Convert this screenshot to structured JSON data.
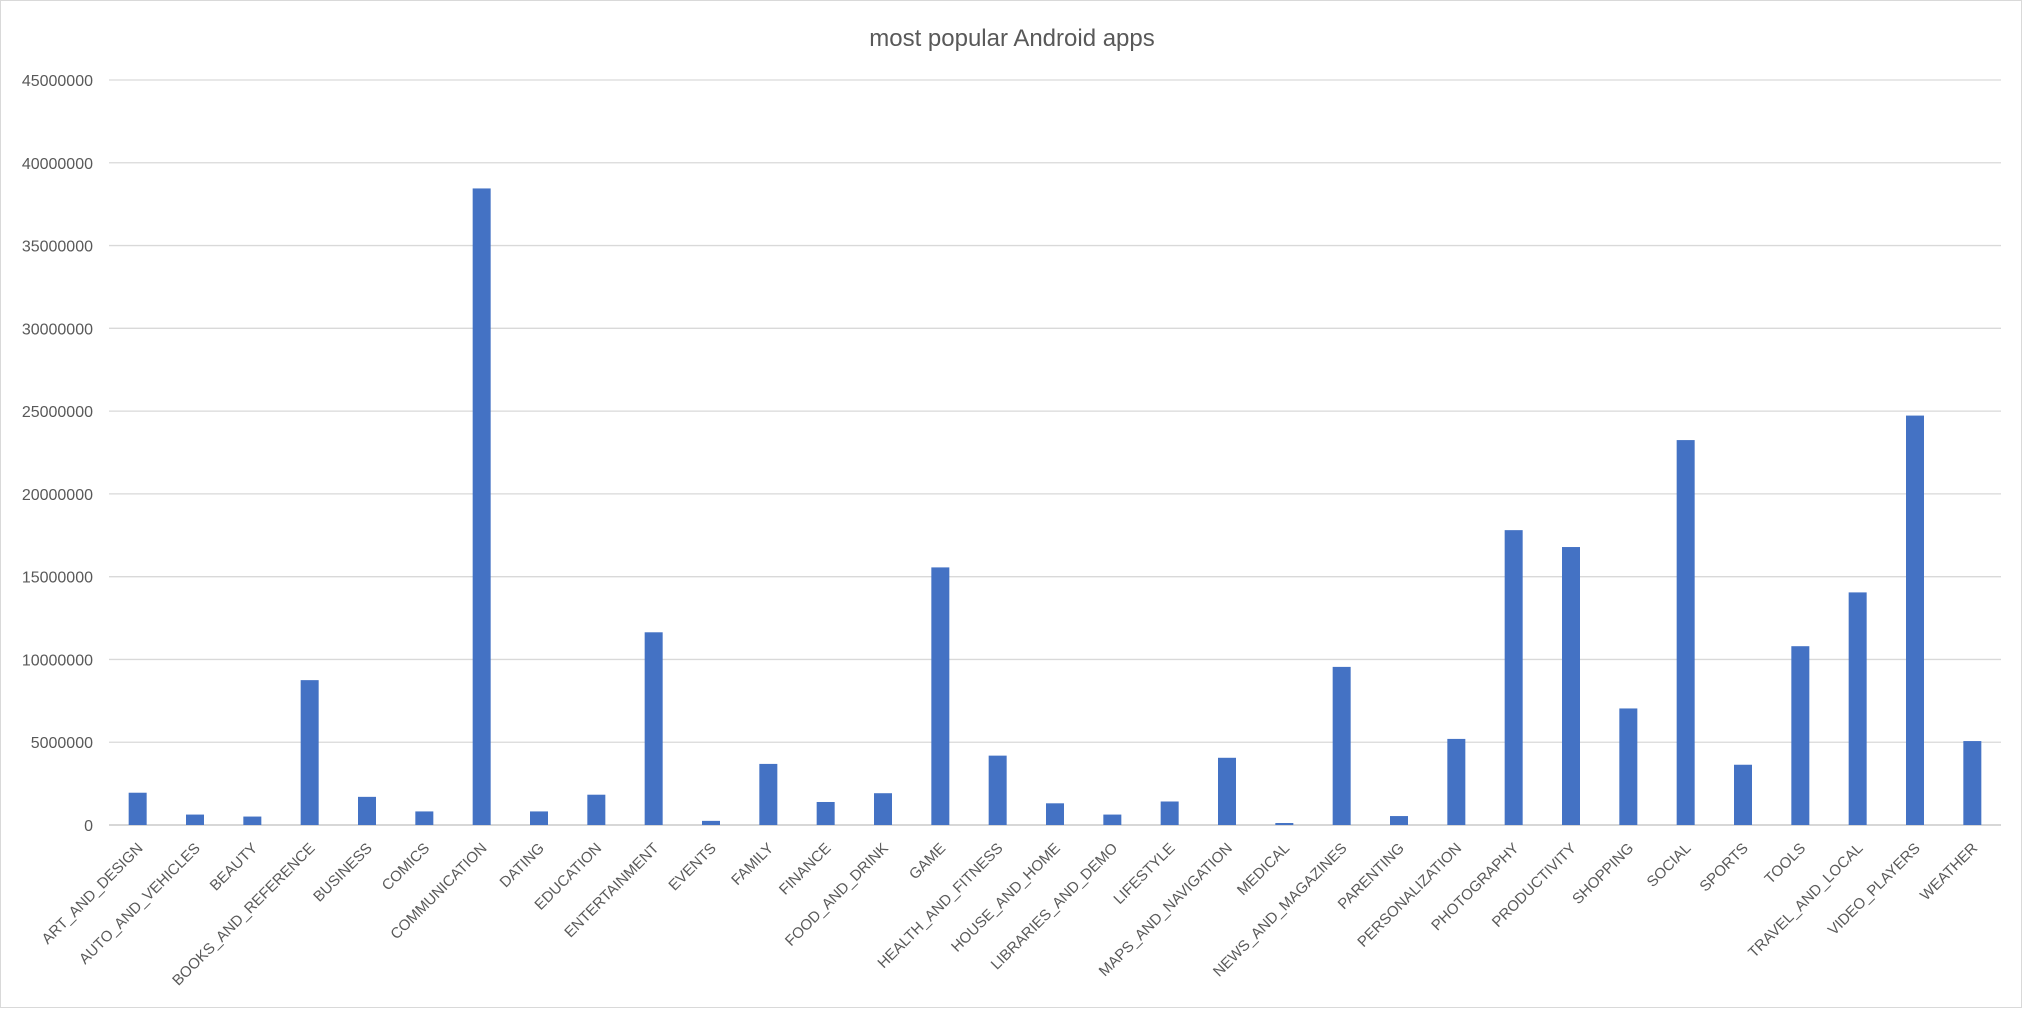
{
  "chart_data": {
    "type": "bar",
    "title": "most popular Android apps",
    "xlabel": "",
    "ylabel": "",
    "ylim": [
      0,
      45000000
    ],
    "yticks": [
      "0",
      "5000000",
      "10000000",
      "15000000",
      "20000000",
      "25000000",
      "30000000",
      "35000000",
      "40000000",
      "45000000"
    ],
    "grid": true,
    "legend": "none",
    "bar_color": "#4472C4",
    "categories": [
      "ART_AND_DESIGN",
      "AUTO_AND_VEHICLES",
      "BEAUTY",
      "BOOKS_AND_REFERENCE",
      "BUSINESS",
      "COMICS",
      "COMMUNICATION",
      "DATING",
      "EDUCATION",
      "ENTERTAINMENT",
      "EVENTS",
      "FAMILY",
      "FINANCE",
      "FOOD_AND_DRINK",
      "GAME",
      "HEALTH_AND_FITNESS",
      "HOUSE_AND_HOME",
      "LIBRARIES_AND_DEMO",
      "LIFESTYLE",
      "MAPS_AND_NAVIGATION",
      "MEDICAL",
      "NEWS_AND_MAGAZINES",
      "PARENTING",
      "PERSONALIZATION",
      "PHOTOGRAPHY",
      "PRODUCTIVITY",
      "SHOPPING",
      "SOCIAL",
      "SPORTS",
      "TOOLS",
      "TRAVEL_AND_LOCAL",
      "VIDEO_PLAYERS",
      "WEATHER"
    ],
    "values": [
      1950000,
      630000,
      510000,
      8750000,
      1700000,
      820000,
      38450000,
      820000,
      1830000,
      11640000,
      250000,
      3690000,
      1390000,
      1920000,
      15560000,
      4190000,
      1310000,
      630000,
      1420000,
      4060000,
      120000,
      9550000,
      540000,
      5200000,
      17810000,
      16790000,
      7040000,
      23250000,
      3640000,
      10800000,
      14050000,
      24730000,
      5070000
    ]
  }
}
